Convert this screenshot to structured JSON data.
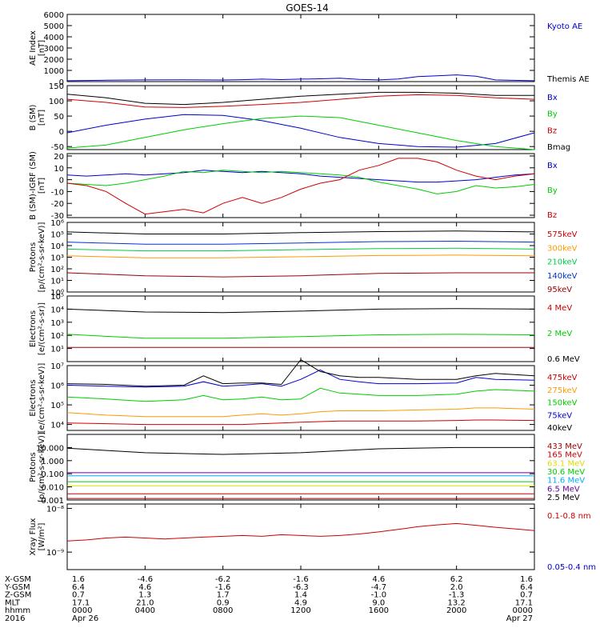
{
  "title": "GOES-14",
  "footer": {
    "rows": [
      {
        "label": "X-GSM",
        "values": [
          "1.6",
          "-4.6",
          "-6.2",
          "-1.6",
          "4.6",
          "6.2",
          "1.6"
        ]
      },
      {
        "label": "Y-GSM",
        "values": [
          "6.4",
          "4.6",
          "-1.6",
          "-6.3",
          "-4.7",
          "2.0",
          "6.4"
        ]
      },
      {
        "label": "Z-GSM",
        "values": [
          "0.7",
          "1.3",
          "1.7",
          "1.4",
          "-1.0",
          "-1.3",
          "0.7"
        ]
      },
      {
        "label": "MLT",
        "values": [
          "17.1",
          "21.0",
          "0.9",
          "4.9",
          "9.0",
          "13.2",
          "17.1"
        ]
      },
      {
        "label": "hhmm",
        "values": [
          "0000",
          "0400",
          "0800",
          "1200",
          "1600",
          "2000",
          "0000"
        ]
      },
      {
        "label": "2016",
        "values": [
          "Apr 26",
          "",
          "",
          "",
          "",
          "",
          "Apr 27"
        ]
      }
    ]
  },
  "chart_data": [
    {
      "type": "line",
      "id": "ae",
      "ylabel": [
        "AE Index",
        "[nT]"
      ],
      "ylim": [
        0,
        6000
      ],
      "yticks": [
        {
          "v": 0,
          "t": "0"
        },
        {
          "v": 1000,
          "t": "1000"
        },
        {
          "v": 2000,
          "t": "2000"
        },
        {
          "v": 3000,
          "t": "3000"
        },
        {
          "v": 4000,
          "t": "4000"
        },
        {
          "v": 5000,
          "t": "5000"
        },
        {
          "v": 6000,
          "t": "6000"
        }
      ],
      "x_hours": [
        0,
        2,
        4,
        6,
        8,
        9,
        10,
        11,
        12,
        13,
        14,
        15,
        16,
        17,
        18,
        19,
        20,
        21,
        22,
        24
      ],
      "series": [
        {
          "name": "Kyoto AE",
          "color": "#0000cc",
          "values": [
            80,
            120,
            150,
            160,
            140,
            170,
            220,
            180,
            220,
            250,
            300,
            200,
            150,
            230,
            450,
            520,
            600,
            480,
            150,
            80
          ]
        },
        {
          "name": "Themis AE",
          "color": "#000000",
          "values": []
        }
      ]
    },
    {
      "type": "line",
      "id": "bsm",
      "ylabel": [
        "B (SM)",
        "[nT]"
      ],
      "ylim": [
        -60,
        150
      ],
      "yticks": [
        {
          "v": -50,
          "t": "-50"
        },
        {
          "v": 0,
          "t": "0"
        },
        {
          "v": 50,
          "t": "50"
        },
        {
          "v": 100,
          "t": "100"
        },
        {
          "v": 150,
          "t": "150"
        }
      ],
      "x_hours": [
        0,
        2,
        4,
        6,
        8,
        10,
        12,
        14,
        16,
        18,
        20,
        22,
        24
      ],
      "series": [
        {
          "name": "Bx",
          "color": "#0000cc",
          "values": [
            -5,
            20,
            40,
            55,
            52,
            35,
            10,
            -20,
            -40,
            -50,
            -52,
            -40,
            -5
          ]
        },
        {
          "name": "By",
          "color": "#00cc00",
          "values": [
            -55,
            -45,
            -20,
            5,
            25,
            42,
            50,
            45,
            20,
            -5,
            -30,
            -50,
            -60
          ]
        },
        {
          "name": "Bz",
          "color": "#cc0000",
          "values": [
            105,
            95,
            80,
            78,
            82,
            88,
            95,
            105,
            115,
            120,
            118,
            110,
            105
          ]
        },
        {
          "name": "Bmag",
          "color": "#000000",
          "values": [
            122,
            110,
            92,
            88,
            95,
            105,
            115,
            122,
            128,
            128,
            125,
            118,
            118
          ]
        }
      ]
    },
    {
      "type": "line",
      "id": "bigrf",
      "ylabel": [
        "B (SM)-IGRF (SM)",
        "[nT]"
      ],
      "ylim": [
        -32,
        22
      ],
      "yticks": [
        {
          "v": -30,
          "t": "-30"
        },
        {
          "v": -20,
          "t": "-20"
        },
        {
          "v": -10,
          "t": "-10"
        },
        {
          "v": 0,
          "t": "0"
        },
        {
          "v": 10,
          "t": "10"
        },
        {
          "v": 20,
          "t": "20"
        }
      ],
      "x_hours": [
        0,
        1,
        2,
        3,
        4,
        5,
        6,
        7,
        8,
        9,
        10,
        11,
        12,
        13,
        14,
        15,
        16,
        17,
        18,
        19,
        20,
        21,
        22,
        23,
        24
      ],
      "series": [
        {
          "name": "Bx",
          "color": "#0000cc",
          "values": [
            4,
            3,
            4,
            5,
            4,
            5,
            6,
            8,
            7,
            6,
            7,
            6,
            5,
            3,
            2,
            1,
            0,
            -1,
            -2,
            -2,
            -1,
            0,
            2,
            4,
            5
          ]
        },
        {
          "name": "By",
          "color": "#00cc00",
          "values": [
            -3,
            -4,
            -5,
            -3,
            0,
            3,
            7,
            6,
            8,
            7,
            6,
            7,
            6,
            5,
            4,
            2,
            -2,
            -5,
            -8,
            -12,
            -10,
            -5,
            -7,
            -6,
            -4
          ]
        },
        {
          "name": "Bz",
          "color": "#cc0000",
          "values": [
            -3,
            -5,
            -10,
            -20,
            -29,
            -27,
            -25,
            -28,
            -20,
            -15,
            -20,
            -15,
            -8,
            -3,
            0,
            8,
            12,
            18,
            18,
            15,
            8,
            3,
            0,
            3,
            5
          ]
        }
      ]
    },
    {
      "type": "line",
      "id": "protons_low",
      "log": true,
      "ylabel": [
        "Protons",
        "[p/(cm²-s-sr-keV)]"
      ],
      "ylim": [
        1,
        1000000
      ],
      "yticks": [
        {
          "v": 1,
          "t": "10⁰"
        },
        {
          "v": 10,
          "t": "10¹"
        },
        {
          "v": 100,
          "t": "10²"
        },
        {
          "v": 1000,
          "t": "10³"
        },
        {
          "v": 10000,
          "t": "10⁴"
        },
        {
          "v": 100000,
          "t": "10⁵"
        },
        {
          "v": 1000000,
          "t": "10⁶"
        }
      ],
      "x_hours": [
        0,
        4,
        8,
        12,
        16,
        20,
        24
      ],
      "series": [
        {
          "name": "575keV",
          "color": "#cc0000",
          "values": []
        },
        {
          "name": "300keV",
          "color": "#ff9900",
          "values": [
            1300,
            900,
            900,
            1100,
            1400,
            1500,
            1300
          ]
        },
        {
          "name": "210keV",
          "color": "#00cc44",
          "values": [
            5000,
            3500,
            3500,
            4500,
            5500,
            6000,
            5000
          ]
        },
        {
          "name": "140keV",
          "color": "#0033cc",
          "values": [
            20000,
            13000,
            13000,
            17000,
            22000,
            24000,
            20000
          ]
        },
        {
          "name": "95keV",
          "color": "#990000",
          "values": [
            45,
            25,
            20,
            25,
            40,
            45,
            45
          ]
        },
        {
          "name": "",
          "color": "#000000",
          "values": [
            150000,
            100000,
            100000,
            130000,
            160000,
            180000,
            150000
          ]
        }
      ]
    },
    {
      "type": "line",
      "id": "electrons_hi",
      "log": true,
      "ylabel": [
        "Electrons",
        "[e/(cm²-s-sr)]"
      ],
      "ylim": [
        1,
        100000
      ],
      "yticks": [
        {
          "v": 10,
          "t": "10¹"
        },
        {
          "v": 100,
          "t": "10²"
        },
        {
          "v": 1000,
          "t": "10³"
        },
        {
          "v": 10000,
          "t": "10⁴"
        },
        {
          "v": 100000,
          "t": "10⁵"
        }
      ],
      "x_hours": [
        0,
        4,
        8,
        12,
        16,
        20,
        24
      ],
      "series": [
        {
          "name": "4 MeV",
          "color": "#cc0000",
          "values": []
        },
        {
          "name": "2 MeV",
          "color": "#00cc00",
          "values": [
            120,
            60,
            60,
            80,
            110,
            120,
            110
          ]
        },
        {
          "name": "0.6 MeV",
          "color": "#000000",
          "values": [
            10000,
            6000,
            5500,
            7000,
            10000,
            11000,
            10000
          ]
        },
        {
          "name": "",
          "color": "#990000",
          "values": [
            12,
            12,
            12,
            12,
            12,
            12,
            12
          ]
        }
      ]
    },
    {
      "type": "line",
      "id": "electrons_low",
      "log": true,
      "ylabel": [
        "Electrons",
        "[e/(cm²-s-sr-keV)]"
      ],
      "ylim": [
        5000,
        10000000
      ],
      "yticks": [
        {
          "v": 10000,
          "t": "10⁴"
        },
        {
          "v": 100000,
          "t": "10⁵"
        },
        {
          "v": 1000000,
          "t": "10⁶"
        },
        {
          "v": 10000000,
          "t": "10⁷"
        }
      ],
      "x_hours": [
        0,
        2,
        4,
        6,
        7,
        8,
        9,
        10,
        11,
        12,
        13,
        14,
        15,
        16,
        18,
        20,
        21,
        22,
        24
      ],
      "series": [
        {
          "name": "475keV",
          "color": "#cc0000",
          "values": [
            12000,
            11000,
            10000,
            10000,
            10000,
            10000,
            10000,
            11000,
            12000,
            13000,
            14000,
            15000,
            15000,
            15000,
            15000,
            16000,
            17000,
            17000,
            16000
          ]
        },
        {
          "name": "275keV",
          "color": "#ff9900",
          "values": [
            40000,
            30000,
            25000,
            25000,
            25000,
            25000,
            30000,
            35000,
            30000,
            35000,
            45000,
            50000,
            50000,
            50000,
            55000,
            60000,
            70000,
            70000,
            60000
          ]
        },
        {
          "name": "150keV",
          "color": "#00cc00",
          "values": [
            250000,
            200000,
            150000,
            180000,
            300000,
            180000,
            200000,
            250000,
            180000,
            200000,
            700000,
            400000,
            350000,
            300000,
            300000,
            350000,
            500000,
            600000,
            500000
          ]
        },
        {
          "name": "75keV",
          "color": "#0000cc",
          "values": [
            1000000,
            900000,
            800000,
            900000,
            1500000,
            900000,
            1000000,
            1200000,
            900000,
            2000000,
            6000000,
            2000000,
            1500000,
            1200000,
            1200000,
            1300000,
            2500000,
            2000000,
            1800000
          ]
        },
        {
          "name": "40keV",
          "color": "#000000",
          "values": [
            1200000,
            1100000,
            900000,
            1000000,
            3000000,
            1200000,
            1300000,
            1300000,
            1100000,
            20000000,
            5000000,
            3000000,
            2500000,
            2500000,
            2000000,
            2000000,
            3000000,
            4000000,
            3000000
          ]
        }
      ]
    },
    {
      "type": "line",
      "id": "protons_hi",
      "log": true,
      "ylabel": [
        "Protons",
        "[p/(cm²-s-sr-keV)]"
      ],
      "ylim": [
        0.001,
        100
      ],
      "yticks": [
        {
          "v": 0.001,
          "t": "0.001"
        },
        {
          "v": 0.01,
          "t": "0.010"
        },
        {
          "v": 0.1,
          "t": "0.100"
        },
        {
          "v": 1,
          "t": "1.000"
        },
        {
          "v": 10,
          "t": "10.000"
        }
      ],
      "x_hours": [
        0,
        4,
        8,
        12,
        16,
        20,
        24
      ],
      "series": [
        {
          "name": "433 MeV",
          "color": "#990000",
          "values": [
            0.0013,
            0.0013,
            0.0013,
            0.0013,
            0.0013,
            0.0013,
            0.0013
          ]
        },
        {
          "name": "165 MeV",
          "color": "#cc0000",
          "values": [
            0.003,
            0.003,
            0.003,
            0.003,
            0.003,
            0.003,
            0.003
          ]
        },
        {
          "name": "63.1 MeV",
          "color": "#dddd00",
          "values": [
            0.012,
            0.012,
            0.012,
            0.012,
            0.012,
            0.012,
            0.012
          ]
        },
        {
          "name": "30.6 MeV",
          "color": "#00cc00",
          "values": [
            0.025,
            0.025,
            0.025,
            0.025,
            0.025,
            0.025,
            0.025
          ]
        },
        {
          "name": "11.6 MeV",
          "color": "#00aaff",
          "values": [
            0.07,
            0.07,
            0.07,
            0.07,
            0.07,
            0.07,
            0.07
          ]
        },
        {
          "name": "6.5 MeV",
          "color": "#660099",
          "values": [
            0.12,
            0.12,
            0.12,
            0.12,
            0.12,
            0.12,
            0.12
          ]
        },
        {
          "name": "2.5 MeV",
          "color": "#000000",
          "values": [
            9,
            4,
            3,
            4,
            8,
            10,
            10
          ]
        }
      ]
    },
    {
      "type": "line",
      "id": "xray",
      "log": true,
      "ylabel": [
        "Xray Flux",
        "[W/m²]"
      ],
      "ylim": [
        3.98e-10,
        1.26e-08
      ],
      "yticks": [
        {
          "v": 1e-09,
          "t": "10⁻⁹"
        },
        {
          "v": 1e-08,
          "t": "10⁻⁸"
        }
      ],
      "x_hours": [
        0,
        1,
        2,
        3,
        4,
        5,
        6,
        7,
        8,
        9,
        10,
        11,
        12,
        13,
        14,
        15,
        16,
        17,
        18,
        19,
        20,
        21,
        22,
        23,
        24
      ],
      "series": [
        {
          "name": "0.1-0.8 nm",
          "color": "#cc0000",
          "values": [
            1.8e-09,
            1.9e-09,
            2.1e-09,
            2.2e-09,
            2.1e-09,
            2e-09,
            2.1e-09,
            2.2e-09,
            2.3e-09,
            2.4e-09,
            2.3e-09,
            2.5e-09,
            2.4e-09,
            2.3e-09,
            2.4e-09,
            2.6e-09,
            2.9e-09,
            3.3e-09,
            3.8e-09,
            4.2e-09,
            4.5e-09,
            4.1e-09,
            3.7e-09,
            3.4e-09,
            3.1e-09
          ]
        },
        {
          "name": "0.05-0.4 nm",
          "color": "#0000cc",
          "values": []
        }
      ]
    }
  ]
}
